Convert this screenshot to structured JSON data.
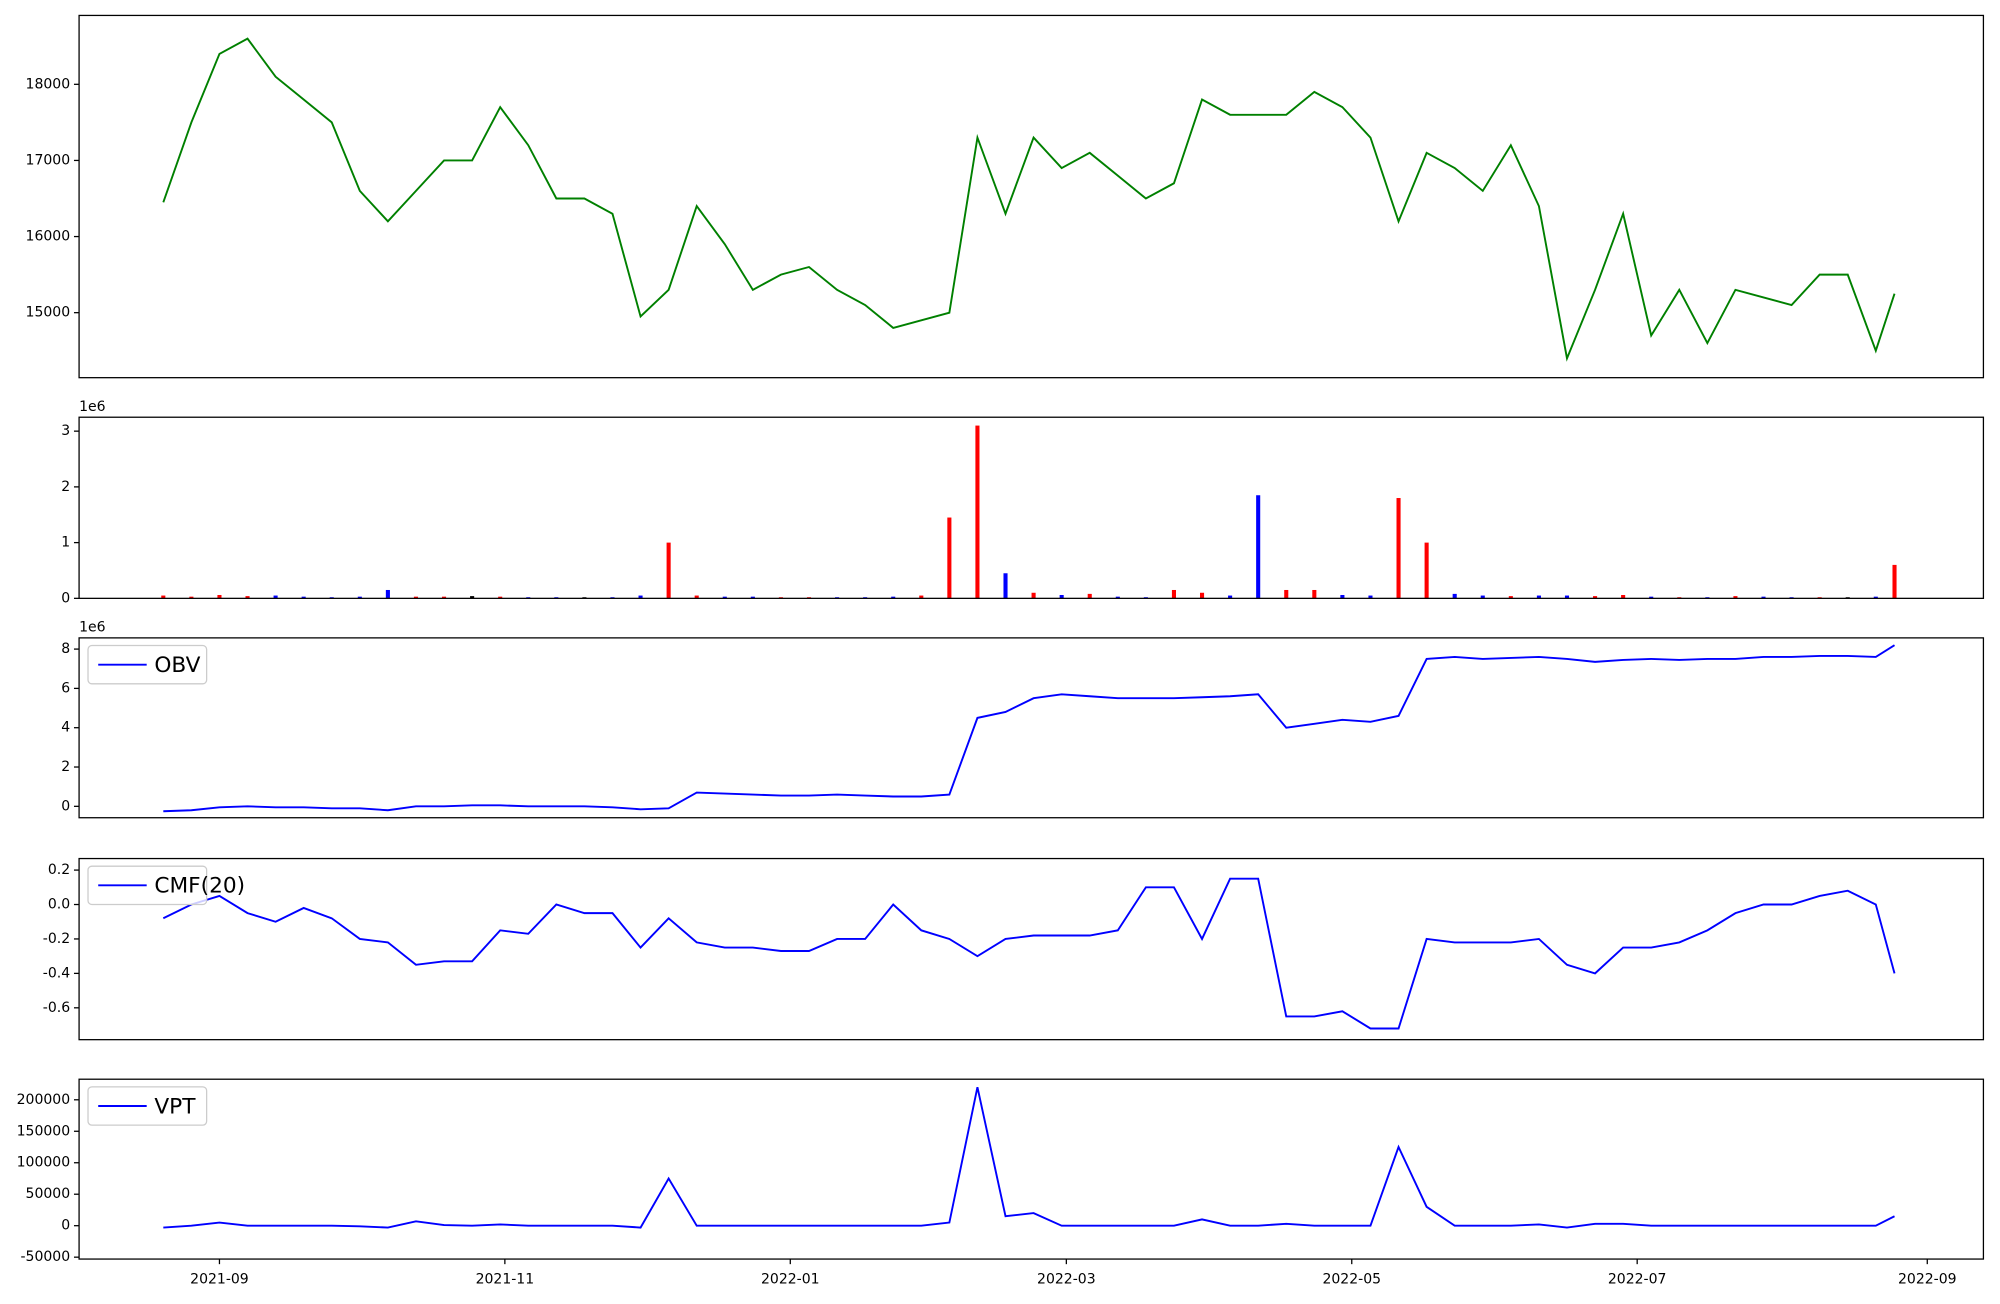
{
  "chart_data": [
    {
      "type": "line",
      "color": "#008000",
      "x": [
        18859,
        18865,
        18871,
        18877,
        18883,
        18889,
        18895,
        18901,
        18907,
        18913,
        18919,
        18925,
        18931,
        18937,
        18943,
        18949,
        18955,
        18961,
        18967,
        18973,
        18979,
        18985,
        18991,
        18997,
        19003,
        19009,
        19015,
        19021,
        19027,
        19033,
        19039,
        19045,
        19051,
        19057,
        19063,
        19069,
        19075,
        19081,
        19087,
        19093,
        19099,
        19105,
        19111,
        19117,
        19123,
        19129,
        19135,
        19141,
        19147,
        19153,
        19159,
        19165,
        19171,
        19177,
        19183,
        19189,
        19195,
        19201,
        19207,
        19213,
        19219,
        19225,
        19229
      ],
      "values": [
        16450,
        17500,
        18400,
        18600,
        18100,
        17800,
        17500,
        16600,
        16200,
        16600,
        17000,
        17000,
        17700,
        17200,
        16500,
        16500,
        16300,
        14950,
        15300,
        16400,
        15900,
        15300,
        15500,
        15600,
        15300,
        15100,
        14800,
        14900,
        15000,
        17300,
        16300,
        17300,
        16900,
        17100,
        16800,
        16500,
        16700,
        17800,
        17600,
        17600,
        17600,
        17900,
        17700,
        17300,
        16200,
        17100,
        16900,
        16600,
        17200,
        16400,
        14400,
        15300,
        16300,
        14700,
        15300,
        14600,
        15300,
        15200,
        15100,
        15500,
        15500,
        14500,
        15250
      ],
      "xlim": [
        18841,
        19248
      ],
      "ylim": [
        14146,
        18905
      ],
      "yticks": [
        15000,
        16000,
        17000,
        18000
      ]
    },
    {
      "type": "bar",
      "offset_text": "1e6",
      "x": [
        18859,
        18865,
        18871,
        18877,
        18883,
        18889,
        18895,
        18901,
        18907,
        18913,
        18919,
        18925,
        18931,
        18937,
        18943,
        18949,
        18955,
        18961,
        18967,
        18973,
        18979,
        18985,
        18991,
        18997,
        19003,
        19009,
        19015,
        19021,
        19027,
        19033,
        19039,
        19045,
        19051,
        19057,
        19063,
        19069,
        19075,
        19081,
        19087,
        19093,
        19099,
        19105,
        19111,
        19117,
        19123,
        19129,
        19135,
        19141,
        19147,
        19153,
        19159,
        19165,
        19171,
        19177,
        19183,
        19189,
        19195,
        19201,
        19207,
        19213,
        19219,
        19225,
        19229
      ],
      "values": [
        0.05,
        0.03,
        0.06,
        0.04,
        0.05,
        0.03,
        0.02,
        0.03,
        0.15,
        0.03,
        0.03,
        0.04,
        0.03,
        0.02,
        0.02,
        0.02,
        0.02,
        0.05,
        1.0,
        0.05,
        0.03,
        0.03,
        0.02,
        0.02,
        0.02,
        0.02,
        0.03,
        0.05,
        1.45,
        3.1,
        0.45,
        0.1,
        0.06,
        0.08,
        0.03,
        0.02,
        0.15,
        0.1,
        0.05,
        1.85,
        0.15,
        0.15,
        0.06,
        0.05,
        1.8,
        1.0,
        0.08,
        0.05,
        0.04,
        0.05,
        0.05,
        0.04,
        0.06,
        0.03,
        0.02,
        0.02,
        0.04,
        0.03,
        0.02,
        0.02,
        0.02,
        0.03,
        0.6
      ],
      "colors": [
        "red",
        "red",
        "red",
        "red",
        "blue",
        "blue",
        "blue",
        "blue",
        "blue",
        "red",
        "red",
        "black",
        "red",
        "blue",
        "blue",
        "black",
        "blue",
        "blue",
        "red",
        "red",
        "blue",
        "blue",
        "red",
        "red",
        "blue",
        "blue",
        "blue",
        "red",
        "red",
        "red",
        "blue",
        "red",
        "blue",
        "red",
        "blue",
        "blue",
        "red",
        "red",
        "blue",
        "blue",
        "red",
        "red",
        "blue",
        "blue",
        "red",
        "red",
        "blue",
        "blue",
        "red",
        "blue",
        "blue",
        "red",
        "red",
        "blue",
        "red",
        "blue",
        "red",
        "blue",
        "blue",
        "red",
        "black",
        "blue",
        "red"
      ],
      "xlim": [
        18841,
        19248
      ],
      "ylim": [
        0,
        3.25
      ],
      "yticks": [
        0,
        1,
        2,
        3
      ]
    },
    {
      "type": "line",
      "offset_text": "1e6",
      "legend": "upper left",
      "x": [
        18859,
        18865,
        18871,
        18877,
        18883,
        18889,
        18895,
        18901,
        18907,
        18913,
        18919,
        18925,
        18931,
        18937,
        18943,
        18949,
        18955,
        18961,
        18967,
        18973,
        18979,
        18985,
        18991,
        18997,
        19003,
        19009,
        19015,
        19021,
        19027,
        19033,
        19039,
        19045,
        19051,
        19057,
        19063,
        19069,
        19075,
        19081,
        19087,
        19093,
        19099,
        19105,
        19111,
        19117,
        19123,
        19129,
        19135,
        19141,
        19147,
        19153,
        19159,
        19165,
        19171,
        19177,
        19183,
        19189,
        19195,
        19201,
        19207,
        19213,
        19219,
        19225,
        19229
      ],
      "series": [
        {
          "name": "OBV",
          "color": "#0000ff",
          "values": [
            -0.25,
            -0.2,
            -0.05,
            0,
            -0.05,
            -0.05,
            -0.1,
            -0.1,
            -0.2,
            0,
            0,
            0.05,
            0.05,
            0,
            0,
            0,
            -0.05,
            -0.15,
            -0.1,
            0.7,
            0.65,
            0.6,
            0.55,
            0.55,
            0.6,
            0.55,
            0.5,
            0.5,
            0.6,
            4.5,
            4.8,
            5.5,
            5.7,
            5.6,
            5.5,
            5.5,
            5.5,
            5.55,
            5.6,
            5.7,
            4.0,
            4.2,
            4.4,
            4.3,
            4.6,
            7.5,
            7.6,
            7.5,
            7.55,
            7.6,
            7.5,
            7.35,
            7.45,
            7.5,
            7.45,
            7.5,
            7.5,
            7.6,
            7.6,
            7.65,
            7.65,
            7.6,
            8.2
          ]
        }
      ],
      "xlim": [
        18841,
        19248
      ],
      "ylim": [
        -0.58,
        8.57
      ],
      "yticks": [
        0,
        2,
        4,
        6,
        8
      ]
    },
    {
      "type": "line",
      "legend": "upper left",
      "x": [
        18859,
        18865,
        18871,
        18877,
        18883,
        18889,
        18895,
        18901,
        18907,
        18913,
        18919,
        18925,
        18931,
        18937,
        18943,
        18949,
        18955,
        18961,
        18967,
        18973,
        18979,
        18985,
        18991,
        18997,
        19003,
        19009,
        19015,
        19021,
        19027,
        19033,
        19039,
        19045,
        19051,
        19057,
        19063,
        19069,
        19075,
        19081,
        19087,
        19093,
        19099,
        19105,
        19111,
        19117,
        19123,
        19129,
        19135,
        19141,
        19147,
        19153,
        19159,
        19165,
        19171,
        19177,
        19183,
        19189,
        19195,
        19201,
        19207,
        19213,
        19219,
        19225,
        19229
      ],
      "series": [
        {
          "name": "CMF(20)",
          "color": "#0000ff",
          "values": [
            -0.08,
            0.0,
            0.05,
            -0.05,
            -0.1,
            -0.02,
            -0.08,
            -0.2,
            -0.22,
            -0.35,
            -0.33,
            -0.33,
            -0.15,
            -0.17,
            0.0,
            -0.05,
            -0.05,
            -0.25,
            -0.08,
            -0.22,
            -0.25,
            -0.25,
            -0.27,
            -0.27,
            -0.2,
            -0.2,
            0.0,
            -0.15,
            -0.2,
            -0.3,
            -0.2,
            -0.18,
            -0.18,
            -0.18,
            -0.15,
            0.1,
            0.1,
            -0.2,
            0.15,
            0.15,
            -0.65,
            -0.65,
            -0.62,
            -0.72,
            -0.72,
            -0.2,
            -0.22,
            -0.22,
            -0.22,
            -0.2,
            -0.35,
            -0.4,
            -0.25,
            -0.25,
            -0.22,
            -0.15,
            -0.05,
            0.0,
            0.0,
            0.05,
            0.08,
            0.0,
            -0.4
          ]
        }
      ],
      "xlim": [
        18841,
        19248
      ],
      "ylim": [
        -0.785,
        0.267
      ],
      "yticks": [
        -0.6,
        -0.4,
        -0.2,
        {
          "value": 0,
          "label": "0.0"
        },
        0.2
      ]
    },
    {
      "type": "line",
      "legend": "upper left",
      "x": [
        18859,
        18865,
        18871,
        18877,
        18883,
        18889,
        18895,
        18901,
        18907,
        18913,
        18919,
        18925,
        18931,
        18937,
        18943,
        18949,
        18955,
        18961,
        18967,
        18973,
        18979,
        18985,
        18991,
        18997,
        19003,
        19009,
        19015,
        19021,
        19027,
        19033,
        19039,
        19045,
        19051,
        19057,
        19063,
        19069,
        19075,
        19081,
        19087,
        19093,
        19099,
        19105,
        19111,
        19117,
        19123,
        19129,
        19135,
        19141,
        19147,
        19153,
        19159,
        19165,
        19171,
        19177,
        19183,
        19189,
        19195,
        19201,
        19207,
        19213,
        19219,
        19225,
        19229
      ],
      "series": [
        {
          "name": "VPT",
          "color": "#0000ff",
          "values": [
            -3000,
            0,
            5000,
            0,
            0,
            0,
            0,
            -1000,
            -3000,
            7000,
            1000,
            0,
            2000,
            0,
            0,
            0,
            0,
            -3000,
            75000,
            0,
            0,
            0,
            0,
            0,
            0,
            0,
            0,
            0,
            5000,
            220000,
            15000,
            20000,
            0,
            0,
            0,
            0,
            0,
            10000,
            0,
            0,
            3000,
            0,
            0,
            0,
            125000,
            30000,
            0,
            0,
            0,
            2000,
            -3000,
            3000,
            3000,
            0,
            0,
            0,
            0,
            0,
            0,
            0,
            0,
            0,
            15000
          ]
        }
      ],
      "xlim": [
        18841,
        19248
      ],
      "ylim": [
        -53000,
        232700
      ],
      "yticks": [
        -50000,
        0,
        50000,
        100000,
        150000,
        200000
      ],
      "xticks": [
        {
          "value": 18871,
          "label": "2021-09"
        },
        {
          "value": 18932,
          "label": "2021-11"
        },
        {
          "value": 18993,
          "label": "2022-01"
        },
        {
          "value": 19052,
          "label": "2022-03"
        },
        {
          "value": 19113,
          "label": "2022-05"
        },
        {
          "value": 19174,
          "label": "2022-07"
        },
        {
          "value": 19236,
          "label": "2022-09"
        }
      ]
    }
  ]
}
